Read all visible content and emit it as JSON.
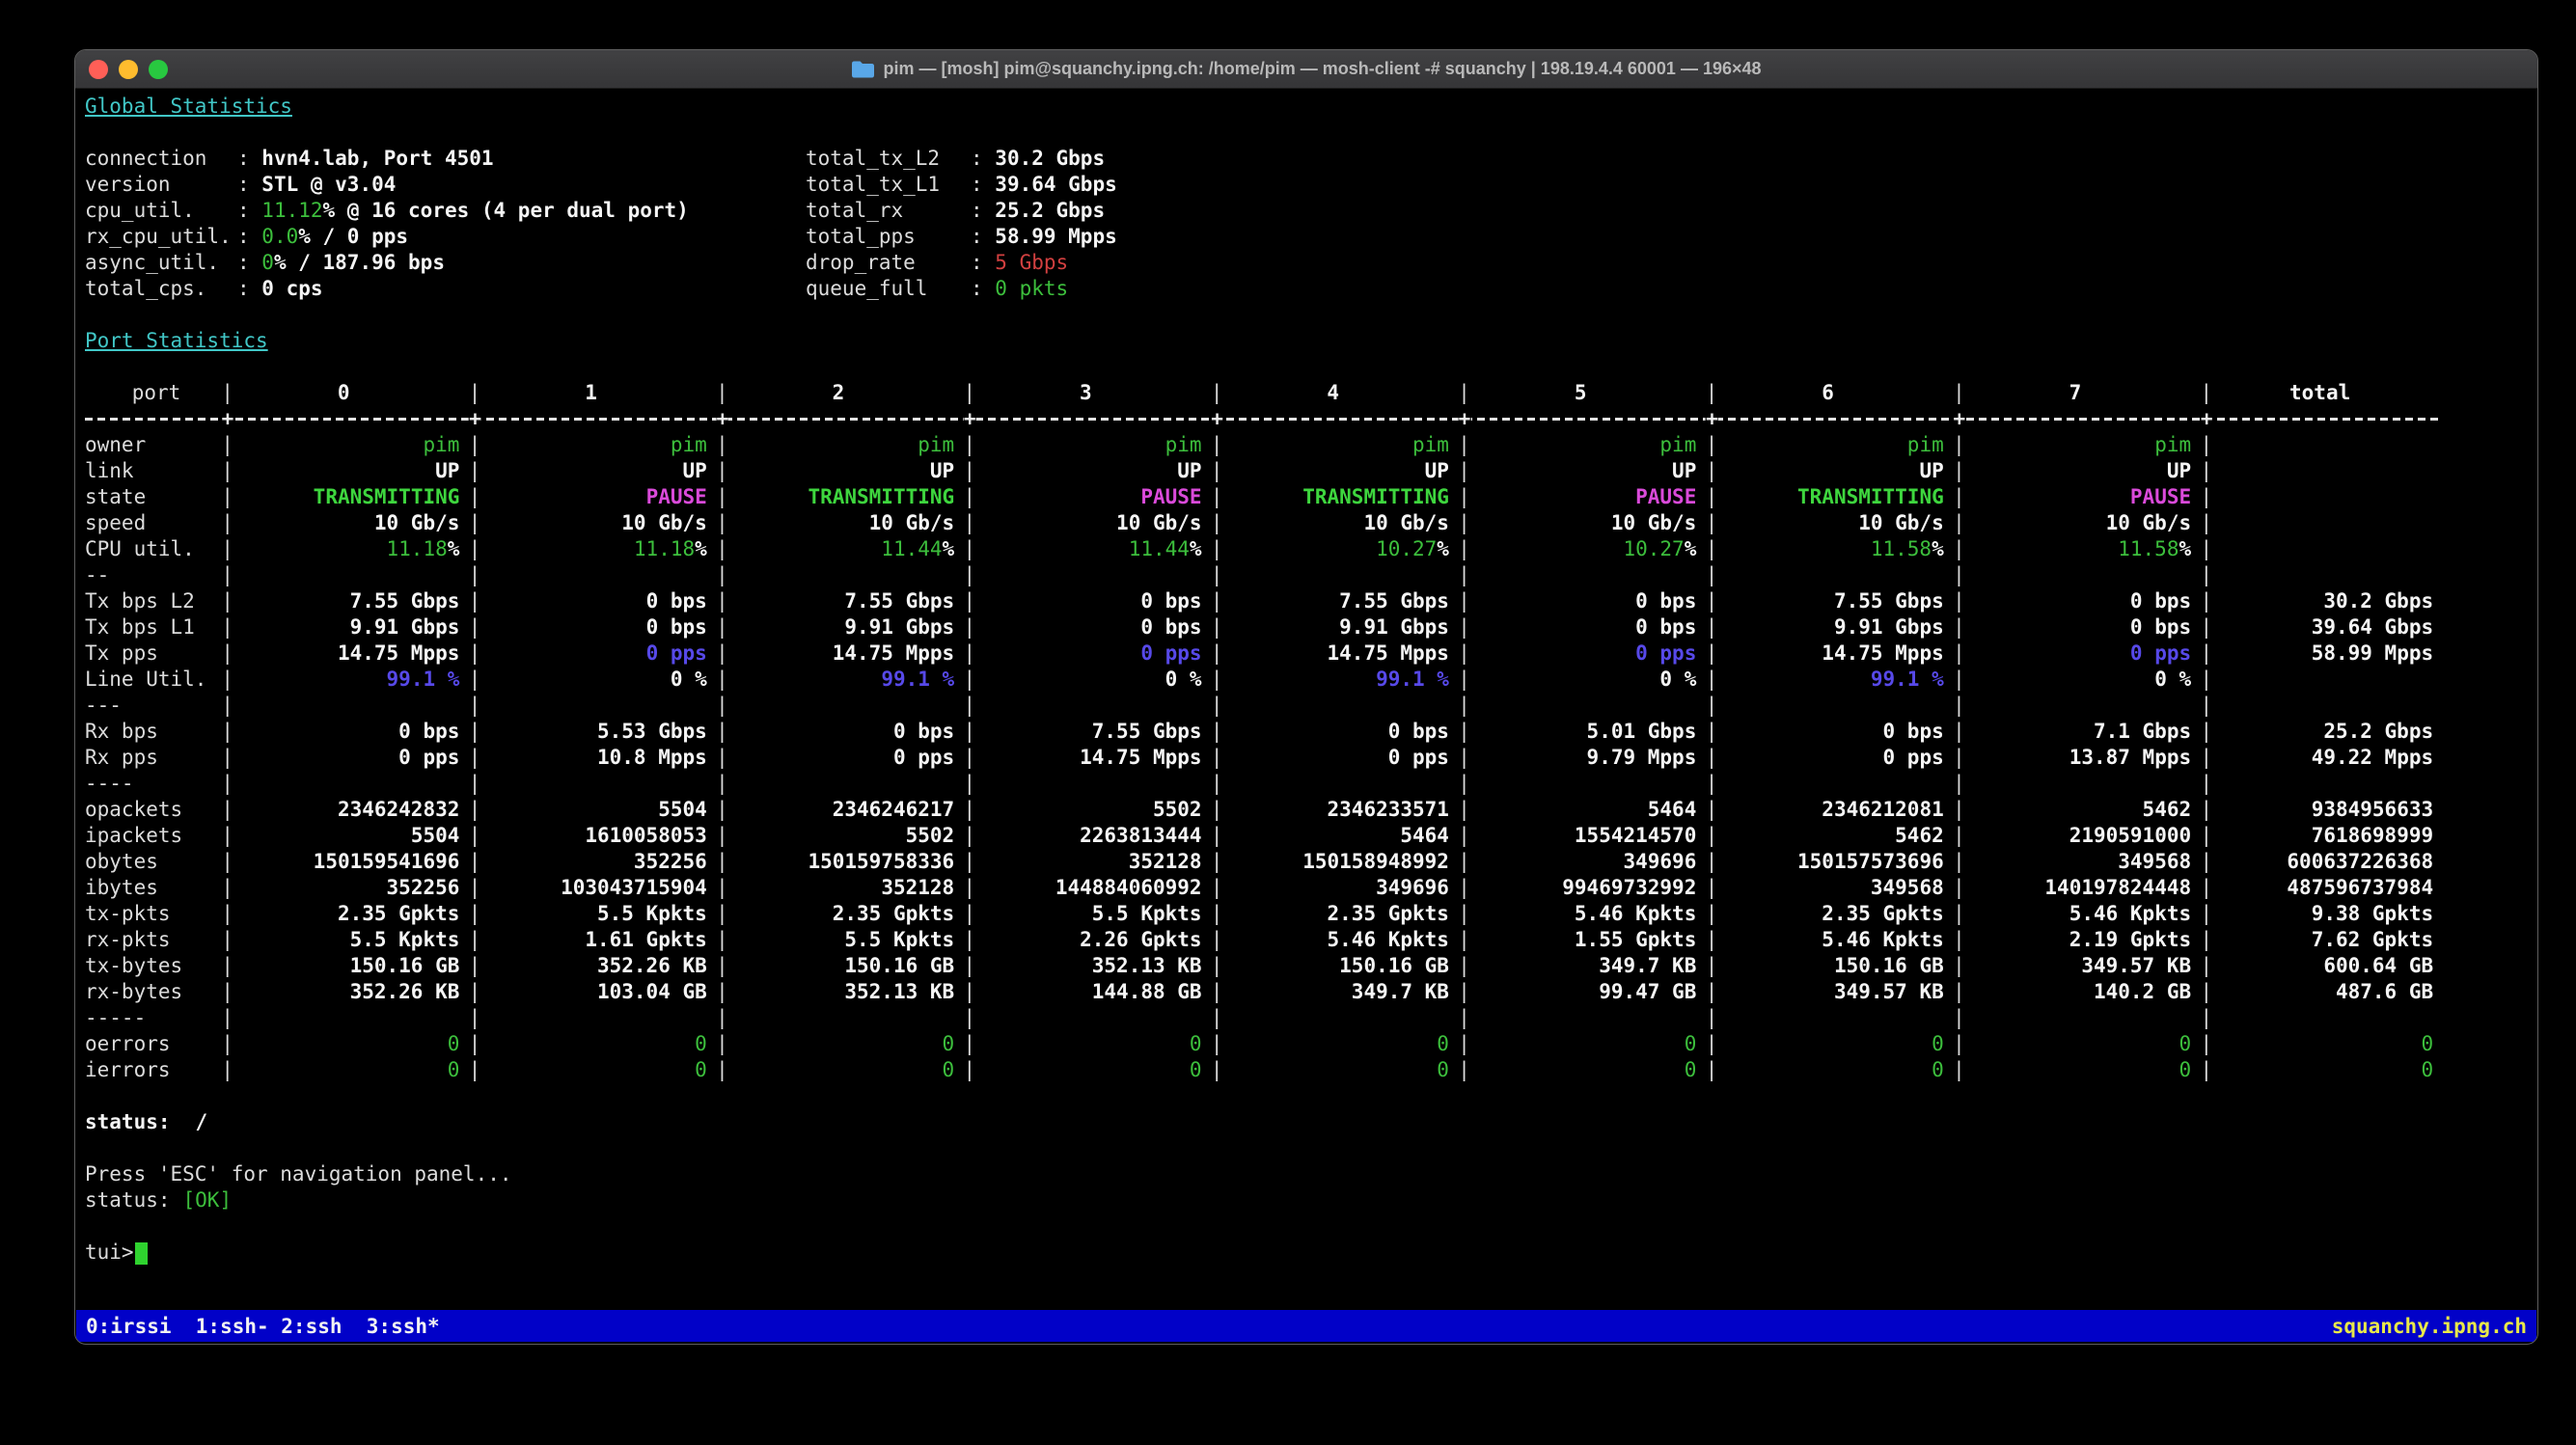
{
  "window": {
    "title": "pim — [mosh] pim@squanchy.ipng.ch: /home/pim — mosh-client -# squanchy | 198.19.4.4 60001 — 196×48",
    "folder_icon_color": "#59a7e8"
  },
  "colors": {
    "green": "#3cbe3c",
    "bold_green": "#3ed63e",
    "magenta": "#da4ada",
    "blue": "#5749e9",
    "red": "#d24040",
    "cyan": "#41c7c7",
    "yellow": "#e8e84a",
    "bar_blue": "#0101c8"
  },
  "global_stats": {
    "heading": "Global Statistics",
    "left": [
      {
        "label": "connection",
        "value": [
          [
            "hvn4.lab, Port 4501",
            "w"
          ]
        ]
      },
      {
        "label": "version",
        "value": [
          [
            "STL @ v3.04",
            "w"
          ]
        ]
      },
      {
        "label": "cpu_util.",
        "value": [
          [
            "11.12",
            "g"
          ],
          [
            "% @ 16 cores (4 per dual port)",
            "w"
          ]
        ]
      },
      {
        "label": "rx_cpu_util.",
        "value": [
          [
            "0.0",
            "g"
          ],
          [
            "% / 0 pps",
            "w"
          ]
        ]
      },
      {
        "label": "async_util.",
        "value": [
          [
            "0",
            "g"
          ],
          [
            "% / 187.96 bps",
            "w"
          ]
        ]
      },
      {
        "label": "total_cps.",
        "value": [
          [
            "0 cps",
            "w"
          ]
        ]
      }
    ],
    "right": [
      {
        "label": "total_tx_L2",
        "value": [
          [
            "30.2 Gbps",
            "w"
          ]
        ]
      },
      {
        "label": "total_tx_L1",
        "value": [
          [
            "39.64 Gbps",
            "w"
          ]
        ]
      },
      {
        "label": "total_rx",
        "value": [
          [
            "25.2 Gbps",
            "w"
          ]
        ]
      },
      {
        "label": "total_pps",
        "value": [
          [
            "58.99 Mpps",
            "w"
          ]
        ]
      },
      {
        "label": "drop_rate",
        "value": [
          [
            "5 Gbps",
            "r"
          ]
        ]
      },
      {
        "label": "queue_full",
        "value": [
          [
            "0 pkts",
            "g"
          ]
        ]
      }
    ]
  },
  "port_stats": {
    "heading": "Port Statistics",
    "header": {
      "label": "port",
      "cols": [
        "0",
        "1",
        "2",
        "3",
        "4",
        "5",
        "6",
        "7"
      ],
      "total": "total"
    },
    "rows": [
      {
        "label": "owner",
        "cells": [
          [
            "pim",
            "g"
          ],
          [
            "pim",
            "g"
          ],
          [
            "pim",
            "g"
          ],
          [
            "pim",
            "g"
          ],
          [
            "pim",
            "g"
          ],
          [
            "pim",
            "g"
          ],
          [
            "pim",
            "g"
          ],
          [
            "pim",
            "g"
          ],
          ""
        ]
      },
      {
        "label": "link",
        "cells": [
          "UP",
          "UP",
          "UP",
          "UP",
          "UP",
          "UP",
          "UP",
          "UP",
          ""
        ]
      },
      {
        "label": "state",
        "cells": [
          [
            "TRANSMITTING",
            "G"
          ],
          [
            "PAUSE",
            "m"
          ],
          [
            "TRANSMITTING",
            "G"
          ],
          [
            "PAUSE",
            "m"
          ],
          [
            "TRANSMITTING",
            "G"
          ],
          [
            "PAUSE",
            "m"
          ],
          [
            "TRANSMITTING",
            "G"
          ],
          [
            "PAUSE",
            "m"
          ],
          ""
        ]
      },
      {
        "label": "speed",
        "cells": [
          "10 Gb/s",
          "10 Gb/s",
          "10 Gb/s",
          "10 Gb/s",
          "10 Gb/s",
          "10 Gb/s",
          "10 Gb/s",
          "10 Gb/s",
          ""
        ]
      },
      {
        "label": "CPU util.",
        "cells": [
          [
            [
              "11.18",
              "g"
            ],
            [
              "%",
              "w"
            ]
          ],
          [
            [
              "11.18",
              "g"
            ],
            [
              "%",
              "w"
            ]
          ],
          [
            [
              "11.44",
              "g"
            ],
            [
              "%",
              "w"
            ]
          ],
          [
            [
              "11.44",
              "g"
            ],
            [
              "%",
              "w"
            ]
          ],
          [
            [
              "10.27",
              "g"
            ],
            [
              "%",
              "w"
            ]
          ],
          [
            [
              "10.27",
              "g"
            ],
            [
              "%",
              "w"
            ]
          ],
          [
            [
              "11.58",
              "g"
            ],
            [
              "%",
              "w"
            ]
          ],
          [
            [
              "11.58",
              "g"
            ],
            [
              "%",
              "w"
            ]
          ],
          ""
        ]
      },
      {
        "label": "--",
        "sep": true
      },
      {
        "label": "Tx bps L2",
        "cells": [
          "7.55 Gbps",
          "0 bps",
          "7.55 Gbps",
          "0 bps",
          "7.55 Gbps",
          "0 bps",
          "7.55 Gbps",
          "0 bps",
          "30.2 Gbps"
        ]
      },
      {
        "label": "Tx bps L1",
        "cells": [
          "9.91 Gbps",
          "0 bps",
          "9.91 Gbps",
          "0 bps",
          "9.91 Gbps",
          "0 bps",
          "9.91 Gbps",
          "0 bps",
          "39.64 Gbps"
        ]
      },
      {
        "label": "Tx pps",
        "cells": [
          "14.75 Mpps",
          [
            "0 pps",
            "b"
          ],
          "14.75 Mpps",
          [
            "0 pps",
            "b"
          ],
          "14.75 Mpps",
          [
            "0 pps",
            "b"
          ],
          "14.75 Mpps",
          [
            "0 pps",
            "b"
          ],
          "58.99 Mpps"
        ]
      },
      {
        "label": "Line Util.",
        "cells": [
          [
            "99.1 %",
            "b"
          ],
          "0 %",
          [
            "99.1 %",
            "b"
          ],
          "0 %",
          [
            "99.1 %",
            "b"
          ],
          "0 %",
          [
            "99.1 %",
            "b"
          ],
          "0 %",
          ""
        ]
      },
      {
        "label": "---",
        "sep": true
      },
      {
        "label": "Rx bps",
        "cells": [
          "0 bps",
          "5.53 Gbps",
          "0 bps",
          "7.55 Gbps",
          "0 bps",
          "5.01 Gbps",
          "0 bps",
          "7.1 Gbps",
          "25.2 Gbps"
        ]
      },
      {
        "label": "Rx pps",
        "cells": [
          "0 pps",
          "10.8 Mpps",
          "0 pps",
          "14.75 Mpps",
          "0 pps",
          "9.79 Mpps",
          "0 pps",
          "13.87 Mpps",
          "49.22 Mpps"
        ]
      },
      {
        "label": "----",
        "sep": true
      },
      {
        "label": "opackets",
        "cells": [
          "2346242832",
          "5504",
          "2346246217",
          "5502",
          "2346233571",
          "5464",
          "2346212081",
          "5462",
          "9384956633"
        ]
      },
      {
        "label": "ipackets",
        "cells": [
          "5504",
          "1610058053",
          "5502",
          "2263813444",
          "5464",
          "1554214570",
          "5462",
          "2190591000",
          "7618698999"
        ]
      },
      {
        "label": "obytes",
        "cells": [
          "150159541696",
          "352256",
          "150159758336",
          "352128",
          "150158948992",
          "349696",
          "150157573696",
          "349568",
          "600637226368"
        ]
      },
      {
        "label": "ibytes",
        "cells": [
          "352256",
          "103043715904",
          "352128",
          "144884060992",
          "349696",
          "99469732992",
          "349568",
          "140197824448",
          "487596737984"
        ]
      },
      {
        "label": "tx-pkts",
        "cells": [
          "2.35 Gpkts",
          "5.5 Kpkts",
          "2.35 Gpkts",
          "5.5 Kpkts",
          "2.35 Gpkts",
          "5.46 Kpkts",
          "2.35 Gpkts",
          "5.46 Kpkts",
          "9.38 Gpkts"
        ]
      },
      {
        "label": "rx-pkts",
        "cells": [
          "5.5 Kpkts",
          "1.61 Gpkts",
          "5.5 Kpkts",
          "2.26 Gpkts",
          "5.46 Kpkts",
          "1.55 Gpkts",
          "5.46 Kpkts",
          "2.19 Gpkts",
          "7.62 Gpkts"
        ]
      },
      {
        "label": "tx-bytes",
        "cells": [
          "150.16 GB",
          "352.26 KB",
          "150.16 GB",
          "352.13 KB",
          "150.16 GB",
          "349.7 KB",
          "150.16 GB",
          "349.57 KB",
          "600.64 GB"
        ]
      },
      {
        "label": "rx-bytes",
        "cells": [
          "352.26 KB",
          "103.04 GB",
          "352.13 KB",
          "144.88 GB",
          "349.7 KB",
          "99.47 GB",
          "349.57 KB",
          "140.2 GB",
          "487.6 GB"
        ]
      },
      {
        "label": "-----",
        "sep": true
      },
      {
        "label": "oerrors",
        "cells": [
          [
            "0",
            "g"
          ],
          [
            "0",
            "g"
          ],
          [
            "0",
            "g"
          ],
          [
            "0",
            "g"
          ],
          [
            "0",
            "g"
          ],
          [
            "0",
            "g"
          ],
          [
            "0",
            "g"
          ],
          [
            "0",
            "g"
          ],
          [
            "0",
            "g"
          ]
        ]
      },
      {
        "label": "ierrors",
        "cells": [
          [
            "0",
            "g"
          ],
          [
            "0",
            "g"
          ],
          [
            "0",
            "g"
          ],
          [
            "0",
            "g"
          ],
          [
            "0",
            "g"
          ],
          [
            "0",
            "g"
          ],
          [
            "0",
            "g"
          ],
          [
            "0",
            "g"
          ],
          [
            "0",
            "g"
          ]
        ]
      }
    ]
  },
  "footer": {
    "status_spinner_label": "status:",
    "status_spinner": "/",
    "esc_hint": "Press 'ESC' for navigation panel...",
    "status_label": "status:",
    "status_value": "[OK]",
    "prompt": "tui>"
  },
  "tmux_bar": {
    "left": "0:irssi  1:ssh- 2:ssh  3:ssh*",
    "right": "squanchy.ipng.ch"
  }
}
